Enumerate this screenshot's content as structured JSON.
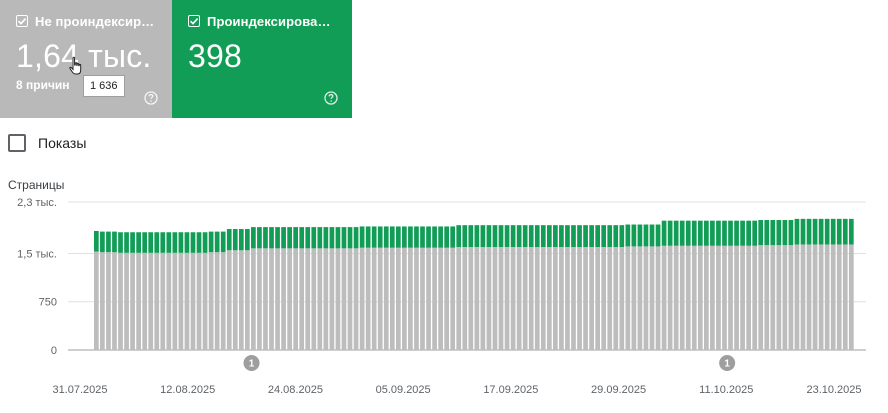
{
  "cards": {
    "not_indexed": {
      "title": "Не проиндексир…",
      "value": "1,64 тыс.",
      "sub": "8 причин",
      "color": "#b9b9b9",
      "tooltip": "1 636"
    },
    "indexed": {
      "title": "Проиндексирова…",
      "value": "398",
      "color": "#129d56"
    }
  },
  "impressions_label": "Показы",
  "chart_data": {
    "type": "bar",
    "stacked": true,
    "ylabel": "Страницы",
    "yticks": [
      {
        "value": 2300,
        "label": "2,3 тыс."
      },
      {
        "value": 1500,
        "label": "1,5 тыс."
      },
      {
        "value": 750,
        "label": "750"
      },
      {
        "value": 0,
        "label": "0"
      }
    ],
    "ylim": [
      0,
      2300
    ],
    "xtick_labels": [
      "31.07.2025",
      "12.08.2025",
      "24.08.2025",
      "05.09.2025",
      "17.09.2025",
      "29.09.2025",
      "11.10.2025",
      "23.10.2025"
    ],
    "grid": true,
    "series": [
      {
        "name": "Не проиндексир…",
        "color": "#bdbdbd",
        "values": [
          1530,
          1520,
          1520,
          1520,
          1510,
          1510,
          1510,
          1510,
          1510,
          1510,
          1510,
          1510,
          1510,
          1510,
          1510,
          1510,
          1510,
          1510,
          1510,
          1520,
          1520,
          1520,
          1550,
          1550,
          1550,
          1550,
          1580,
          1580,
          1580,
          1580,
          1580,
          1580,
          1580,
          1580,
          1580,
          1580,
          1580,
          1580,
          1580,
          1580,
          1580,
          1580,
          1580,
          1580,
          1590,
          1590,
          1590,
          1590,
          1590,
          1590,
          1590,
          1590,
          1590,
          1590,
          1590,
          1590,
          1590,
          1590,
          1590,
          1590,
          1600,
          1600,
          1600,
          1600,
          1600,
          1600,
          1600,
          1600,
          1600,
          1600,
          1600,
          1600,
          1600,
          1600,
          1600,
          1600,
          1600,
          1600,
          1600,
          1600,
          1600,
          1600,
          1600,
          1600,
          1600,
          1600,
          1600,
          1600,
          1610,
          1610,
          1610,
          1610,
          1610,
          1610,
          1620,
          1620,
          1620,
          1620,
          1620,
          1620,
          1620,
          1620,
          1620,
          1620,
          1620,
          1620,
          1620,
          1620,
          1620,
          1620,
          1630,
          1630,
          1630,
          1630,
          1630,
          1630,
          1640,
          1640,
          1640,
          1640,
          1640,
          1640,
          1640,
          1640,
          1640,
          1640
        ]
      },
      {
        "name": "Проиндексирова…",
        "color": "#129d56",
        "values": [
          320,
          320,
          320,
          320,
          320,
          320,
          320,
          320,
          320,
          320,
          320,
          320,
          320,
          320,
          320,
          320,
          320,
          320,
          320,
          320,
          320,
          320,
          330,
          330,
          330,
          330,
          330,
          330,
          330,
          330,
          330,
          330,
          330,
          330,
          330,
          330,
          330,
          330,
          330,
          330,
          330,
          330,
          330,
          330,
          330,
          330,
          330,
          330,
          330,
          330,
          330,
          330,
          330,
          330,
          330,
          330,
          330,
          330,
          330,
          330,
          340,
          340,
          340,
          340,
          340,
          340,
          340,
          340,
          340,
          340,
          340,
          340,
          340,
          340,
          340,
          340,
          340,
          340,
          340,
          340,
          340,
          340,
          340,
          340,
          340,
          340,
          340,
          340,
          340,
          340,
          340,
          340,
          340,
          340,
          390,
          390,
          390,
          390,
          390,
          390,
          390,
          390,
          390,
          390,
          390,
          390,
          390,
          390,
          390,
          390,
          390,
          390,
          390,
          390,
          390,
          390,
          398,
          398,
          398,
          398,
          398,
          398,
          398,
          398,
          398,
          398
        ]
      }
    ],
    "annotations": [
      {
        "label": "1",
        "position": 0.207
      },
      {
        "label": "1",
        "position": 0.832
      }
    ]
  }
}
